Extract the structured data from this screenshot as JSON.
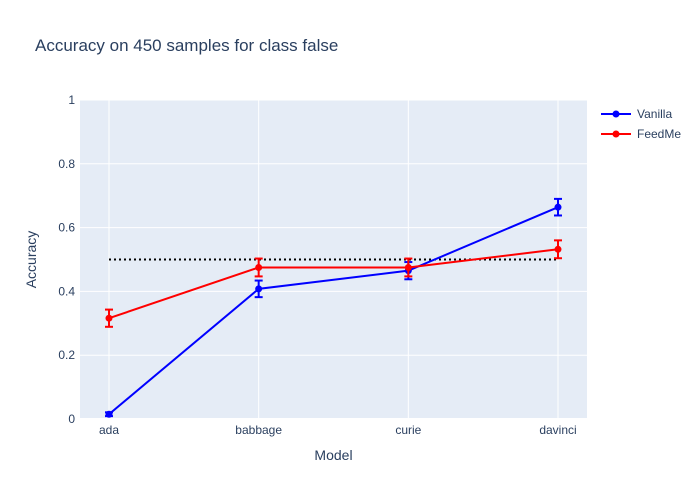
{
  "chart_data": {
    "type": "line",
    "title": "Accuracy on 450 samples for class  false",
    "xlabel": "Model",
    "ylabel": "Accuracy",
    "categories": [
      "ada",
      "babbage",
      "curie",
      "davinci"
    ],
    "ylim": [
      0,
      1
    ],
    "yticks": [
      "0",
      "0.2",
      "0.4",
      "0.6",
      "0.8",
      "1"
    ],
    "ytick_values": [
      0,
      0.2,
      0.4,
      0.6,
      0.8,
      1
    ],
    "series": [
      {
        "name": "Vanilla",
        "color": "#0000ff",
        "values": [
          0.015,
          0.408,
          0.465,
          0.664
        ],
        "errors": [
          0.006,
          0.026,
          0.027,
          0.026
        ]
      },
      {
        "name": "FeedMe",
        "color": "#ff0000",
        "values": [
          0.316,
          0.475,
          0.475,
          0.532
        ],
        "errors": [
          0.027,
          0.028,
          0.028,
          0.028
        ]
      }
    ],
    "reference_line": {
      "y": 0.5,
      "style": "dotted",
      "color": "#000000"
    },
    "grid": true,
    "plot_background": "#e5ecf6",
    "legend_position": "top-right"
  }
}
